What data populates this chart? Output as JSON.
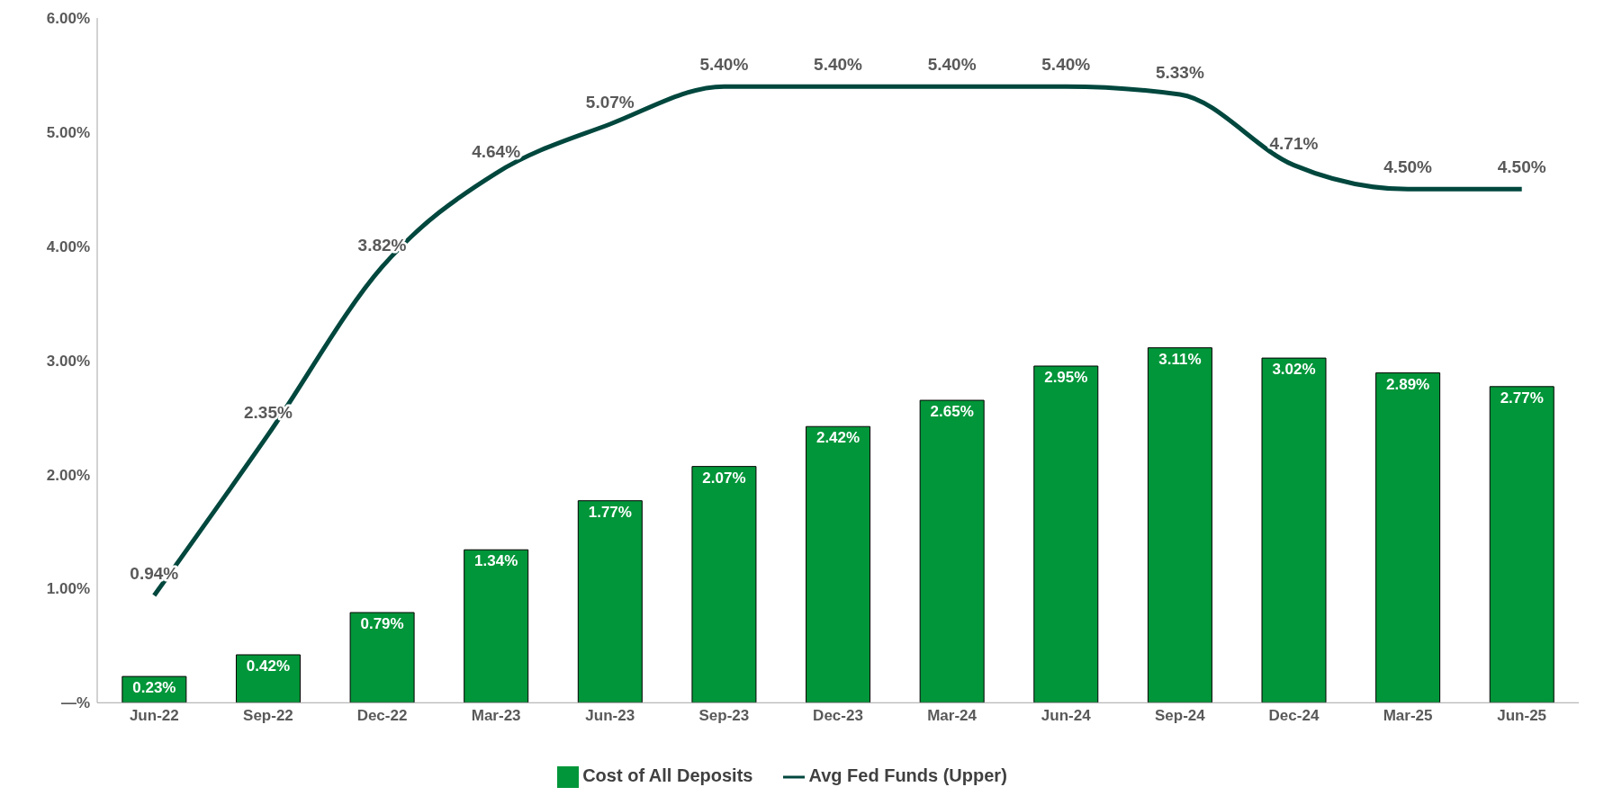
{
  "chart_data": {
    "type": "bar",
    "categories": [
      "Jun-22",
      "Sep-22",
      "Dec-22",
      "Mar-23",
      "Jun-23",
      "Sep-23",
      "Dec-23",
      "Mar-24",
      "Jun-24",
      "Sep-24",
      "Dec-24",
      "Mar-25",
      "Jun-25"
    ],
    "series": [
      {
        "name": "Cost of All Deposits",
        "color": "#009639",
        "values": [
          0.23,
          0.42,
          0.79,
          1.34,
          1.77,
          2.07,
          2.42,
          2.65,
          2.95,
          3.11,
          3.02,
          2.89,
          2.77
        ],
        "value_labels": [
          "0.23%",
          "0.42%",
          "0.79%",
          "1.34%",
          "1.77%",
          "2.07%",
          "2.42%",
          "2.65%",
          "2.95%",
          "3.11%",
          "3.02%",
          "2.89%",
          "2.77%"
        ]
      },
      {
        "name": "Avg Fed Funds (Upper)",
        "type": "line",
        "color": "#00473e",
        "values": [
          0.94,
          2.35,
          3.82,
          4.64,
          5.07,
          5.4,
          5.4,
          5.4,
          5.4,
          5.33,
          4.71,
          4.5,
          4.5
        ],
        "value_labels": [
          "0.94%",
          "2.35%",
          "3.82%",
          "4.64%",
          "5.07%",
          "5.40%",
          "5.40%",
          "5.40%",
          "5.40%",
          "5.33%",
          "4.71%",
          "4.50%",
          "4.50%"
        ]
      }
    ],
    "ylim": [
      0,
      6
    ],
    "yticks": [
      {
        "value": 0,
        "label": "—%"
      },
      {
        "value": 1,
        "label": "1.00%"
      },
      {
        "value": 2,
        "label": "2.00%"
      },
      {
        "value": 3,
        "label": "3.00%"
      },
      {
        "value": 4,
        "label": "4.00%"
      },
      {
        "value": 5,
        "label": "5.00%"
      },
      {
        "value": 6,
        "label": "6.00%"
      }
    ],
    "grid": false,
    "legend": "bottom",
    "marker": "none"
  }
}
